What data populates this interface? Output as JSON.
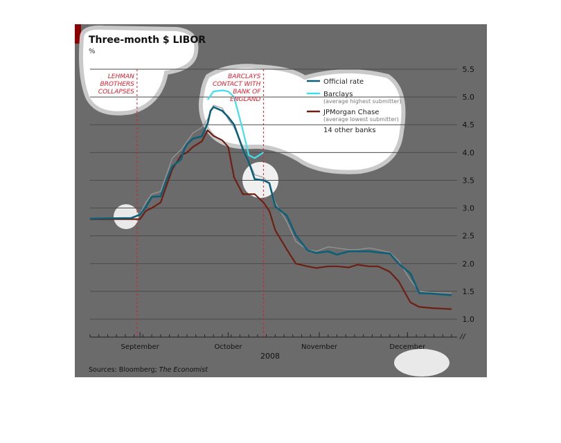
{
  "colors": {
    "background": "#6b6b6b",
    "accent_bar": "#8b0000",
    "official": "#0b5f78",
    "barclays": "#3de0f0",
    "jpmorgan": "#6e1f12",
    "others": "#9a9a9a",
    "annotation": "#e01a2a",
    "grid": "#4a4a4a",
    "bubble": "#ffffff",
    "bubble_edge": "#c9c9c9"
  },
  "chart_data": {
    "type": "line",
    "title": "Three-month $ LIBOR",
    "unit": "%",
    "ylim": [
      1.0,
      5.5
    ],
    "yticks": [
      1.0,
      1.5,
      2.0,
      2.5,
      3.0,
      3.5,
      4.0,
      4.5,
      5.0,
      5.5
    ],
    "ytick_labels": [
      "1.0",
      "1.5",
      "2.0",
      "2.5",
      "3.0",
      "3.5",
      "4.0",
      "4.5",
      "5.0",
      "5.5"
    ],
    "xlim": [
      "2008-08-29",
      "2008-12-30"
    ],
    "xticks": [
      {
        "date": "2008-09-15",
        "label": "September"
      },
      {
        "date": "2008-10-15",
        "label": "October"
      },
      {
        "date": "2008-11-15",
        "label": "November"
      },
      {
        "date": "2008-12-15",
        "label": "December"
      }
    ],
    "year_label": "2008",
    "grid": true,
    "legend_position": "top-right",
    "annotations": [
      {
        "date": "2008-09-14",
        "text": [
          "LEHMAN",
          "BROTHERS",
          "COLLAPSES"
        ]
      },
      {
        "date": "2008-10-27",
        "text": [
          "BARCLAYS",
          "CONTACT WITH",
          "BANK OF",
          "ENGLAND"
        ]
      }
    ],
    "series": [
      {
        "name": "Official rate",
        "sub": "",
        "key": "official",
        "dates": [
          "2008-08-29",
          "2008-09-12",
          "2008-09-15",
          "2008-09-17",
          "2008-09-19",
          "2008-09-22",
          "2008-09-24",
          "2008-09-26",
          "2008-09-29",
          "2008-09-30",
          "2008-10-01",
          "2008-10-03",
          "2008-10-06",
          "2008-10-08",
          "2008-10-09",
          "2008-10-10",
          "2008-10-13",
          "2008-10-15",
          "2008-10-17",
          "2008-10-20",
          "2008-10-22",
          "2008-10-24",
          "2008-10-27",
          "2008-10-29",
          "2008-10-31",
          "2008-11-04",
          "2008-11-07",
          "2008-11-11",
          "2008-11-14",
          "2008-11-18",
          "2008-11-21",
          "2008-11-25",
          "2008-11-28",
          "2008-12-02",
          "2008-12-05",
          "2008-12-09",
          "2008-12-12",
          "2008-12-16",
          "2008-12-19",
          "2008-12-23",
          "2008-12-30"
        ],
        "values": [
          2.81,
          2.82,
          2.88,
          3.02,
          3.2,
          3.21,
          3.5,
          3.75,
          3.88,
          4.05,
          4.15,
          4.25,
          4.29,
          4.52,
          4.75,
          4.82,
          4.75,
          4.64,
          4.5,
          4.06,
          3.83,
          3.52,
          3.5,
          3.45,
          3.03,
          2.86,
          2.51,
          2.24,
          2.19,
          2.22,
          2.16,
          2.22,
          2.22,
          2.22,
          2.2,
          2.18,
          2.0,
          1.82,
          1.47,
          1.46,
          1.43
        ]
      },
      {
        "name": "Barclays",
        "sub": "(average highest submitter)",
        "key": "barclays",
        "dates": [
          "2008-10-08",
          "2008-10-10",
          "2008-10-13",
          "2008-10-15",
          "2008-10-17",
          "2008-10-20",
          "2008-10-22",
          "2008-10-24",
          "2008-10-27"
        ],
        "values": [
          4.95,
          5.1,
          5.12,
          5.1,
          5.0,
          4.4,
          3.95,
          3.9,
          4.0
        ]
      },
      {
        "name": "JPMorgan Chase",
        "sub": "(average lowest submitter)",
        "key": "jpmorgan",
        "dates": [
          "2008-08-29",
          "2008-09-12",
          "2008-09-15",
          "2008-09-17",
          "2008-09-19",
          "2008-09-22",
          "2008-09-24",
          "2008-09-26",
          "2008-09-29",
          "2008-10-01",
          "2008-10-03",
          "2008-10-06",
          "2008-10-08",
          "2008-10-10",
          "2008-10-13",
          "2008-10-15",
          "2008-10-17",
          "2008-10-20",
          "2008-10-22",
          "2008-10-24",
          "2008-10-27",
          "2008-10-29",
          "2008-10-31",
          "2008-11-04",
          "2008-11-07",
          "2008-11-11",
          "2008-11-14",
          "2008-11-18",
          "2008-11-21",
          "2008-11-25",
          "2008-11-28",
          "2008-12-02",
          "2008-12-05",
          "2008-12-09",
          "2008-12-12",
          "2008-12-16",
          "2008-12-19",
          "2008-12-23",
          "2008-12-30"
        ],
        "values": [
          2.8,
          2.8,
          2.8,
          2.95,
          3.0,
          3.1,
          3.4,
          3.7,
          3.95,
          4.0,
          4.1,
          4.2,
          4.4,
          4.3,
          4.22,
          4.1,
          3.55,
          3.25,
          3.25,
          3.25,
          3.1,
          2.95,
          2.6,
          2.25,
          2.0,
          1.95,
          1.92,
          1.95,
          1.95,
          1.93,
          1.98,
          1.95,
          1.95,
          1.85,
          1.68,
          1.3,
          1.22,
          1.2,
          1.18
        ]
      },
      {
        "name": "14 other banks",
        "sub": "",
        "key": "others",
        "dates": [
          "2008-08-29",
          "2008-09-12",
          "2008-09-15",
          "2008-09-17",
          "2008-09-19",
          "2008-09-22",
          "2008-09-24",
          "2008-09-26",
          "2008-09-29",
          "2008-10-01",
          "2008-10-03",
          "2008-10-06",
          "2008-10-08",
          "2008-10-10",
          "2008-10-13",
          "2008-10-15",
          "2008-10-17",
          "2008-10-20",
          "2008-10-22",
          "2008-10-24",
          "2008-10-27",
          "2008-10-29",
          "2008-10-31",
          "2008-11-04",
          "2008-11-07",
          "2008-11-11",
          "2008-11-14",
          "2008-11-18",
          "2008-11-21",
          "2008-11-25",
          "2008-11-28",
          "2008-12-02",
          "2008-12-05",
          "2008-12-09",
          "2008-12-12",
          "2008-12-16",
          "2008-12-19",
          "2008-12-23",
          "2008-12-30"
        ],
        "values": [
          2.82,
          2.82,
          2.9,
          3.1,
          3.25,
          3.3,
          3.6,
          3.9,
          4.05,
          4.2,
          4.35,
          4.45,
          4.6,
          4.85,
          4.8,
          4.6,
          4.45,
          4.1,
          3.85,
          3.6,
          3.55,
          3.45,
          3.1,
          2.75,
          2.4,
          2.25,
          2.22,
          2.3,
          2.28,
          2.25,
          2.25,
          2.28,
          2.25,
          2.2,
          2.05,
          1.7,
          1.5,
          1.48,
          1.47
        ]
      }
    ]
  },
  "footer": {
    "sources_prefix": "Sources: Bloomberg; ",
    "sources_italic": "The Economist"
  }
}
